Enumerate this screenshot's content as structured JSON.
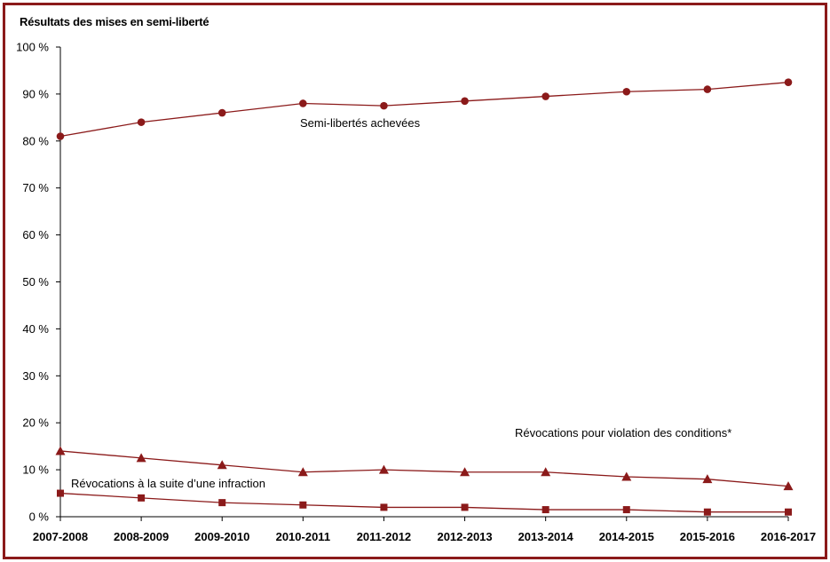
{
  "chart_data": {
    "type": "line",
    "title": "Résultats des mises en semi-liberté",
    "xlabel": "",
    "ylabel": "",
    "categories": [
      "2007-2008",
      "2008-2009",
      "2009-2010",
      "2010-2011",
      "2011-2012",
      "2012-2013",
      "2013-2014",
      "2014-2015",
      "2015-2016",
      "2016-2017"
    ],
    "y_ticks": [
      "0 %",
      "10 %",
      "20 %",
      "30 %",
      "40 %",
      "50 %",
      "60 %",
      "70 %",
      "80 %",
      "90 %",
      "100 %"
    ],
    "ylim": [
      0,
      100
    ],
    "grid": false,
    "line_color": "#8b1a1a",
    "series": [
      {
        "name": "Semi-libertés achevées",
        "marker": "circle",
        "values": [
          81,
          84,
          86,
          88,
          87.5,
          88.5,
          89.5,
          90.5,
          91,
          92.5
        ]
      },
      {
        "name": "Révocations pour violation des conditions*",
        "marker": "triangle",
        "values": [
          14,
          12.5,
          11,
          9.5,
          10,
          9.5,
          9.5,
          8.5,
          8,
          6.5
        ]
      },
      {
        "name": "Révocations à la suite d’une infraction",
        "marker": "square",
        "values": [
          5,
          4,
          3,
          2.5,
          2,
          2,
          1.5,
          1.5,
          1,
          1
        ]
      }
    ]
  }
}
